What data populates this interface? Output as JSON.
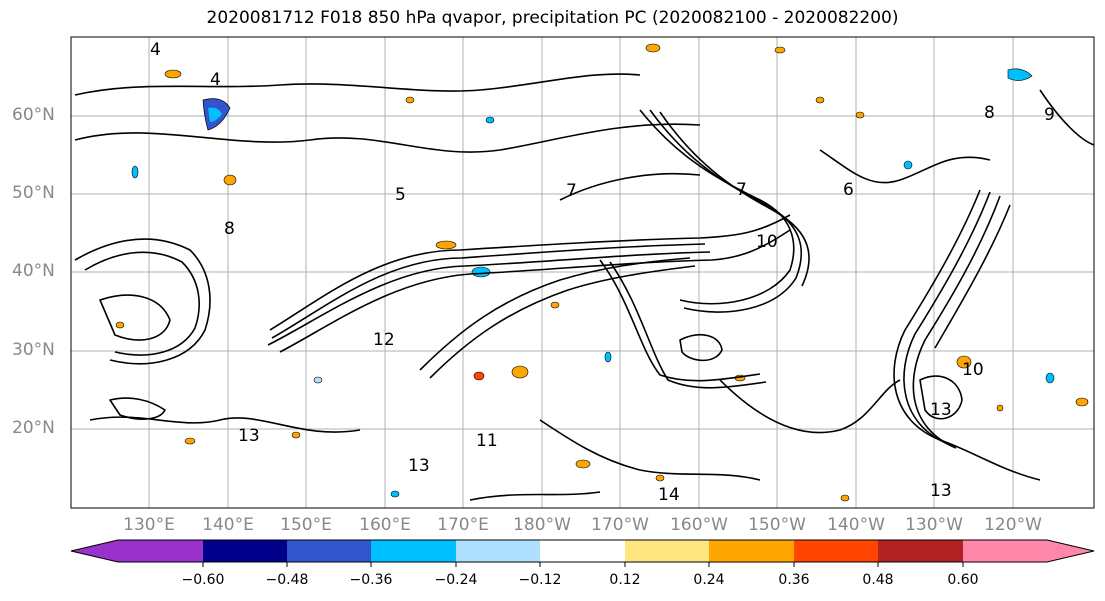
{
  "title": "2020081712 F018 850 hPa qvapor, precipitation PC (2020082100 - 2020082200)",
  "lat_labels": [
    "60°N",
    "50°N",
    "40°N",
    "30°N",
    "20°N"
  ],
  "lon_labels": [
    "130°E",
    "140°E",
    "150°E",
    "160°E",
    "170°E",
    "180°W",
    "170°W",
    "160°W",
    "150°W",
    "140°W",
    "130°W",
    "120°W"
  ],
  "colorbar": {
    "colors": [
      "#9932cc",
      "#00008b",
      "#3355cc",
      "#00bfff",
      "#b0e0ff",
      "#ffffff",
      "#ffe680",
      "#ffa500",
      "#ff4500",
      "#b22222",
      "#ff88aa"
    ],
    "ticks": [
      "−0.60",
      "−0.48",
      "−0.36",
      "−0.24",
      "−0.12",
      "0.12",
      "0.24",
      "0.36",
      "0.48",
      "0.60"
    ]
  },
  "contour_labels": [
    "4",
    "4",
    "5",
    "6",
    "7",
    "7",
    "8",
    "8",
    "9",
    "10",
    "10",
    "11",
    "12",
    "13",
    "13",
    "13",
    "13",
    "14"
  ]
}
